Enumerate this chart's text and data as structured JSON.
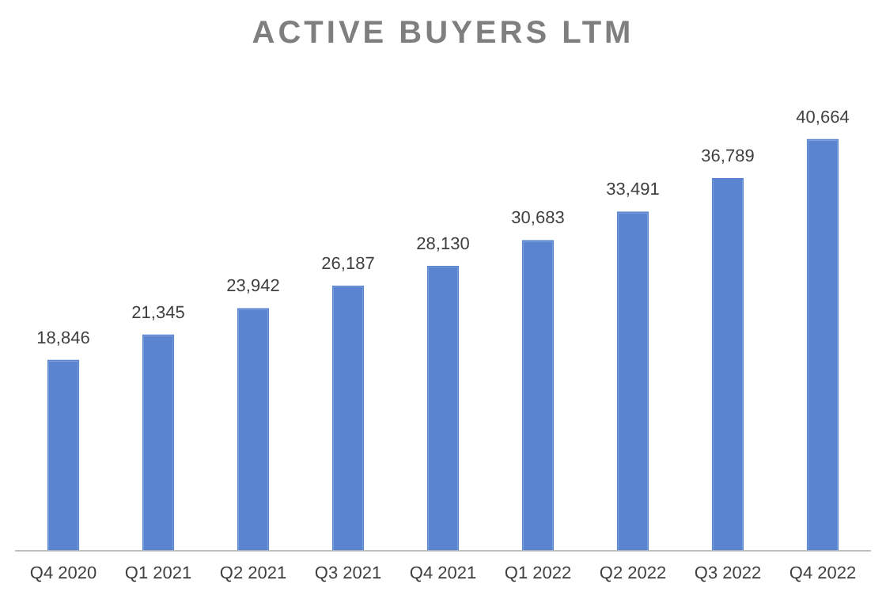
{
  "chart_data": {
    "type": "bar",
    "title": "ACTIVE BUYERS LTM",
    "categories": [
      "Q4 2020",
      "Q1 2021",
      "Q2 2021",
      "Q3 2021",
      "Q4 2021",
      "Q1 2022",
      "Q2 2022",
      "Q3 2022",
      "Q4 2022"
    ],
    "values": [
      18846,
      21345,
      23942,
      26187,
      28130,
      30683,
      33491,
      36789,
      40664
    ],
    "value_labels": [
      "18,846",
      "21,345",
      "23,942",
      "26,187",
      "28,130",
      "30,683",
      "33,491",
      "36,789",
      "40,664"
    ],
    "color": "#5b84d0",
    "grid": false,
    "legend": false
  }
}
